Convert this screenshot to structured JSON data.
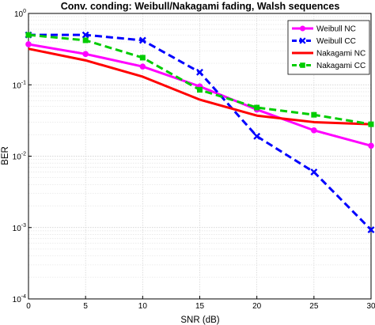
{
  "chart_data": {
    "type": "line",
    "title": "Conv. conding: Weibull/Nakagami fading, Walsh sequences",
    "xlabel": "SNR (dB)",
    "ylabel": "BER",
    "x": [
      0,
      5,
      10,
      15,
      20,
      25,
      30
    ],
    "xlim": [
      0,
      30
    ],
    "ylim": [
      0.0001,
      1
    ],
    "yscale": "log",
    "x_ticks": [
      "0",
      "5",
      "10",
      "15",
      "20",
      "25",
      "30"
    ],
    "y_ticks": [
      {
        "base": "10",
        "exp": "0"
      },
      {
        "base": "10",
        "exp": "-1"
      },
      {
        "base": "10",
        "exp": "-2"
      },
      {
        "base": "10",
        "exp": "-3"
      },
      {
        "base": "10",
        "exp": "-4"
      }
    ],
    "grid": true,
    "legend_position": "top-right",
    "series": [
      {
        "name": "Weibull NC",
        "color": "#ff00ff",
        "dash": "solid",
        "marker": "circle",
        "values": [
          0.37,
          0.27,
          0.18,
          0.095,
          0.045,
          0.023,
          0.014
        ]
      },
      {
        "name": "Weibull CC",
        "color": "#0000ff",
        "dash": "dashed",
        "marker": "x",
        "values": [
          0.5,
          0.5,
          0.42,
          0.15,
          0.019,
          0.006,
          0.00093
        ]
      },
      {
        "name": "Nakagami NC",
        "color": "#ff0000",
        "dash": "solid",
        "marker": "none",
        "values": [
          0.32,
          0.22,
          0.13,
          0.062,
          0.037,
          0.03,
          0.028
        ]
      },
      {
        "name": "Nakagami CC",
        "color": "#00cc00",
        "dash": "dashed",
        "marker": "square",
        "values": [
          0.5,
          0.42,
          0.24,
          0.085,
          0.048,
          0.038,
          0.028
        ]
      }
    ]
  }
}
